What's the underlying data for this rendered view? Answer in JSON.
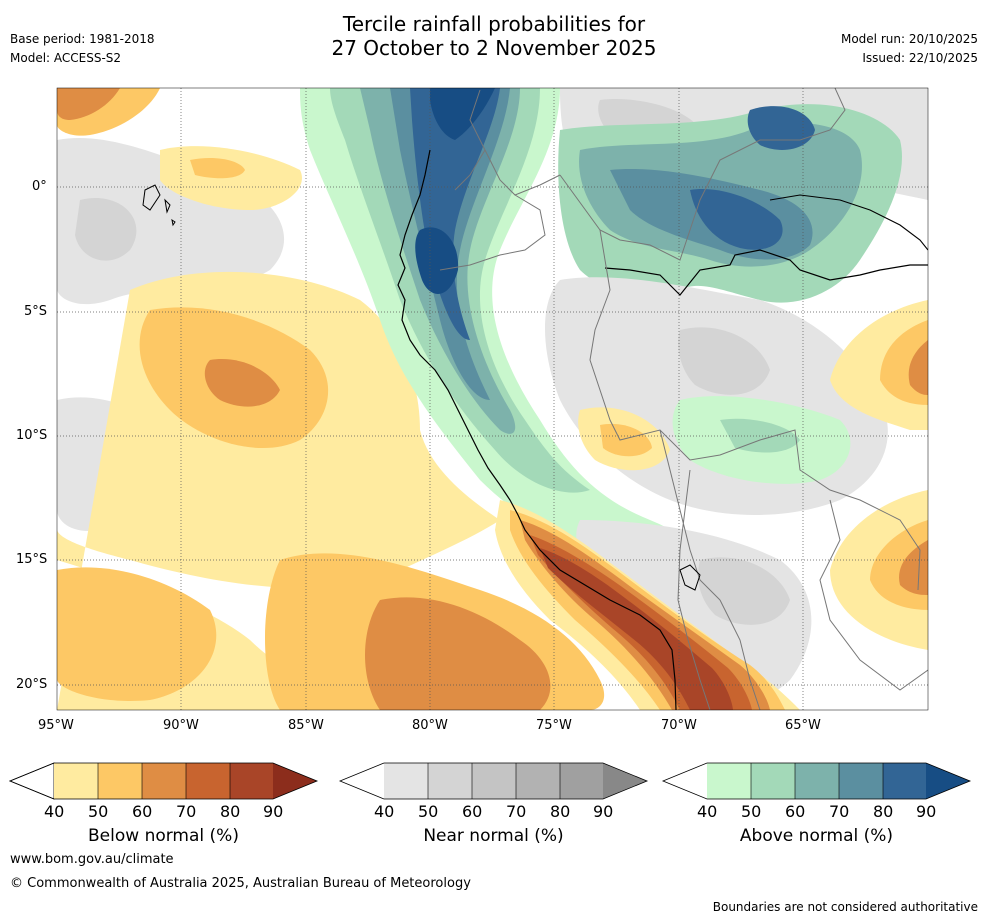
{
  "header": {
    "base_period": "Base period: 1981-2018",
    "model": "Model: ACCESS-S2",
    "title_line1": "Tercile rainfall probabilities for",
    "title_line2": "27 October to 2 November 2025",
    "model_run": "Model run: 20/10/2025",
    "issued": "Issued: 22/10/2025"
  },
  "map": {
    "lat_labels": [
      "0°",
      "5°S",
      "10°S",
      "15°S",
      "20°S"
    ],
    "lon_labels": [
      "95°W",
      "90°W",
      "85°W",
      "80°W",
      "75°W",
      "70°W",
      "65°W"
    ]
  },
  "legends": [
    {
      "name": "below",
      "title": "Below normal (%)",
      "ticks": [
        "40",
        "50",
        "60",
        "70",
        "80",
        "90"
      ],
      "colors": [
        "#ffffff",
        "#ffeba0",
        "#fdc865",
        "#df8d44",
        "#c8642f",
        "#a94528",
        "#8c2d1c"
      ]
    },
    {
      "name": "near",
      "title": "Near normal (%)",
      "ticks": [
        "40",
        "50",
        "60",
        "70",
        "80",
        "90"
      ],
      "colors": [
        "#ffffff",
        "#e4e4e4",
        "#d4d4d4",
        "#c4c4c4",
        "#b2b2b2",
        "#a0a0a0",
        "#888888"
      ]
    },
    {
      "name": "above",
      "title": "Above normal (%)",
      "ticks": [
        "40",
        "50",
        "60",
        "70",
        "80",
        "90"
      ],
      "colors": [
        "#ffffff",
        "#c9f7cd",
        "#a3d9b8",
        "#7db2ab",
        "#5b8fa0",
        "#326595",
        "#174d84"
      ]
    }
  ],
  "footer": {
    "website": "www.bom.gov.au/climate",
    "copyright": "© Commonwealth of Australia 2025, Australian Bureau of Meteorology",
    "disclaimer": "Boundaries are not considered authoritative"
  }
}
